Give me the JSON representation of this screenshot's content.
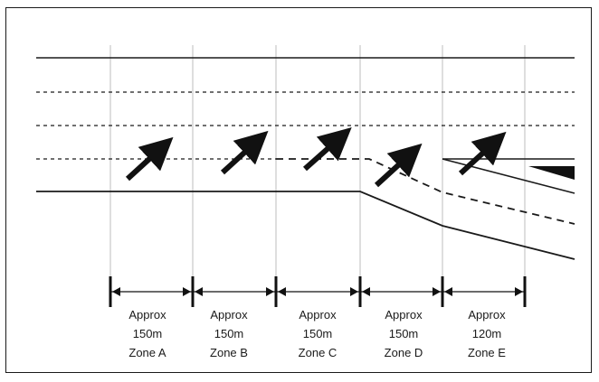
{
  "diagram": {
    "zones": [
      {
        "approx_label": "Approx",
        "distance": "150m",
        "zone_label": "Zone A"
      },
      {
        "approx_label": "Approx",
        "distance": "150m",
        "zone_label": "Zone B"
      },
      {
        "approx_label": "Approx",
        "distance": "150m",
        "zone_label": "Zone C"
      },
      {
        "approx_label": "Approx",
        "distance": "150m",
        "zone_label": "Zone D"
      },
      {
        "approx_label": "Approx",
        "distance": "120m",
        "zone_label": "Zone E"
      }
    ],
    "colors": {
      "line": "#1a1a1a",
      "guide": "#bbbbbb",
      "arrow": "#111111"
    }
  }
}
